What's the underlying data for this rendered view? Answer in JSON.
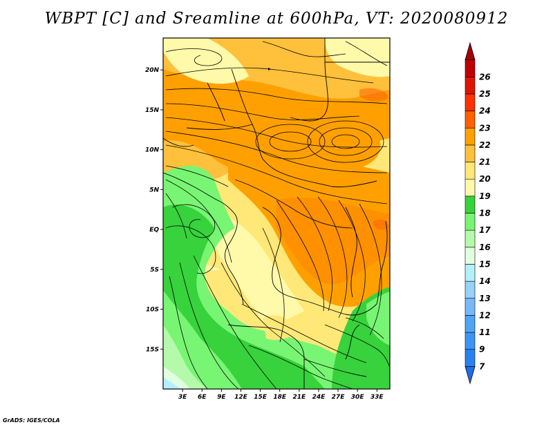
{
  "title": "WBPT [C] and Sreamline at 600hPa, VT: 2020080912",
  "credit": "GrADS: IGES/COLA",
  "map": {
    "lat_range": [
      -20,
      24
    ],
    "lon_range": [
      0,
      35
    ],
    "lat_ticks": [
      {
        "value": 20,
        "label": "20N"
      },
      {
        "value": 15,
        "label": "15N"
      },
      {
        "value": 10,
        "label": "10N"
      },
      {
        "value": 5,
        "label": "5N"
      },
      {
        "value": 0,
        "label": "EQ"
      },
      {
        "value": -5,
        "label": "5S"
      },
      {
        "value": -10,
        "label": "10S"
      },
      {
        "value": -15,
        "label": "15S"
      }
    ],
    "lon_ticks": [
      {
        "value": 3,
        "label": "3E"
      },
      {
        "value": 6,
        "label": "6E"
      },
      {
        "value": 9,
        "label": "9E"
      },
      {
        "value": 12,
        "label": "12E"
      },
      {
        "value": 15,
        "label": "15E"
      },
      {
        "value": 18,
        "label": "18E"
      },
      {
        "value": 21,
        "label": "21E"
      },
      {
        "value": 24,
        "label": "24E"
      },
      {
        "value": 27,
        "label": "27E"
      },
      {
        "value": 30,
        "label": "30E"
      },
      {
        "value": 33,
        "label": "33E"
      }
    ]
  },
  "colorbar": {
    "levels": [
      {
        "label": "7",
        "color": "#1e6eeb"
      },
      {
        "label": "9",
        "color": "#2882f0"
      },
      {
        "label": "11",
        "color": "#3c96f5"
      },
      {
        "label": "12",
        "color": "#50a5f5"
      },
      {
        "label": "13",
        "color": "#78b9fa"
      },
      {
        "label": "14",
        "color": "#96d2fa"
      },
      {
        "label": "15",
        "color": "#b4f0fa"
      },
      {
        "label": "16",
        "color": "#e1ffe1"
      },
      {
        "label": "17",
        "color": "#b4faaa"
      },
      {
        "label": "18",
        "color": "#78f573"
      },
      {
        "label": "19",
        "color": "#37d23c"
      },
      {
        "label": "20",
        "color": "#fffaaa"
      },
      {
        "label": "21",
        "color": "#ffe878"
      },
      {
        "label": "22",
        "color": "#ffc03c"
      },
      {
        "label": "23",
        "color": "#ffa000"
      },
      {
        "label": "24",
        "color": "#ff6000"
      },
      {
        "label": "25",
        "color": "#ff3200"
      },
      {
        "label": "26",
        "color": "#e11400"
      },
      {
        "label": "",
        "color": "#c00000"
      },
      {
        "label": "",
        "color": "#a50000"
      }
    ]
  },
  "colors": {
    "low_blue": "#1e6eeb",
    "light_green": "#b4faaa",
    "green": "#37d23c",
    "pale_yellow": "#fffaaa",
    "yellow": "#ffe878",
    "orange": "#ffc03c",
    "dark_orange": "#ffa000",
    "red": "#ff6000"
  }
}
